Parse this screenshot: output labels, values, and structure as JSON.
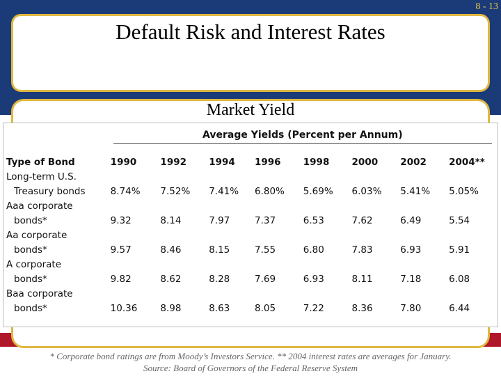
{
  "slide_number": "8 - 13",
  "title": "Default Risk and Interest Rates",
  "subtitle": "Market Yield",
  "table": {
    "super_header": "Average Yields (Percent per Annum)",
    "type_header": "Type of Bond",
    "years": [
      "1990",
      "1992",
      "1994",
      "1996",
      "1998",
      "2000",
      "2002",
      "2004**"
    ],
    "rows": [
      {
        "label_top": "Long-term U.S.",
        "label_bottom": "Treasury bonds",
        "values": [
          "8.74%",
          "7.52%",
          "7.41%",
          "6.80%",
          "5.69%",
          "6.03%",
          "5.41%",
          "5.05%"
        ]
      },
      {
        "label_top": "Aaa corporate",
        "label_bottom": "bonds*",
        "values": [
          "9.32",
          "8.14",
          "7.97",
          "7.37",
          "6.53",
          "7.62",
          "6.49",
          "5.54"
        ]
      },
      {
        "label_top": "Aa corporate",
        "label_bottom": "bonds*",
        "values": [
          "9.57",
          "8.46",
          "8.15",
          "7.55",
          "6.80",
          "7.83",
          "6.93",
          "5.91"
        ]
      },
      {
        "label_top": "A corporate",
        "label_bottom": "bonds*",
        "values": [
          "9.82",
          "8.62",
          "8.28",
          "7.69",
          "6.93",
          "8.11",
          "7.18",
          "6.08"
        ]
      },
      {
        "label_top": "Baa corporate",
        "label_bottom": "bonds*",
        "values": [
          "10.36",
          "8.98",
          "8.63",
          "8.05",
          "7.22",
          "8.36",
          "7.80",
          "6.44"
        ]
      }
    ]
  },
  "footnote_line1": "* Corporate bond ratings are from Moody’s Investors Service.  ** 2004 interest rates are averages for January.",
  "footnote_line2": "Source: Board of Governors of the Federal Reserve System",
  "colors": {
    "frame_blue": "#1a3a78",
    "accent_gold": "#e0b840",
    "accent_red": "#b0182a"
  }
}
